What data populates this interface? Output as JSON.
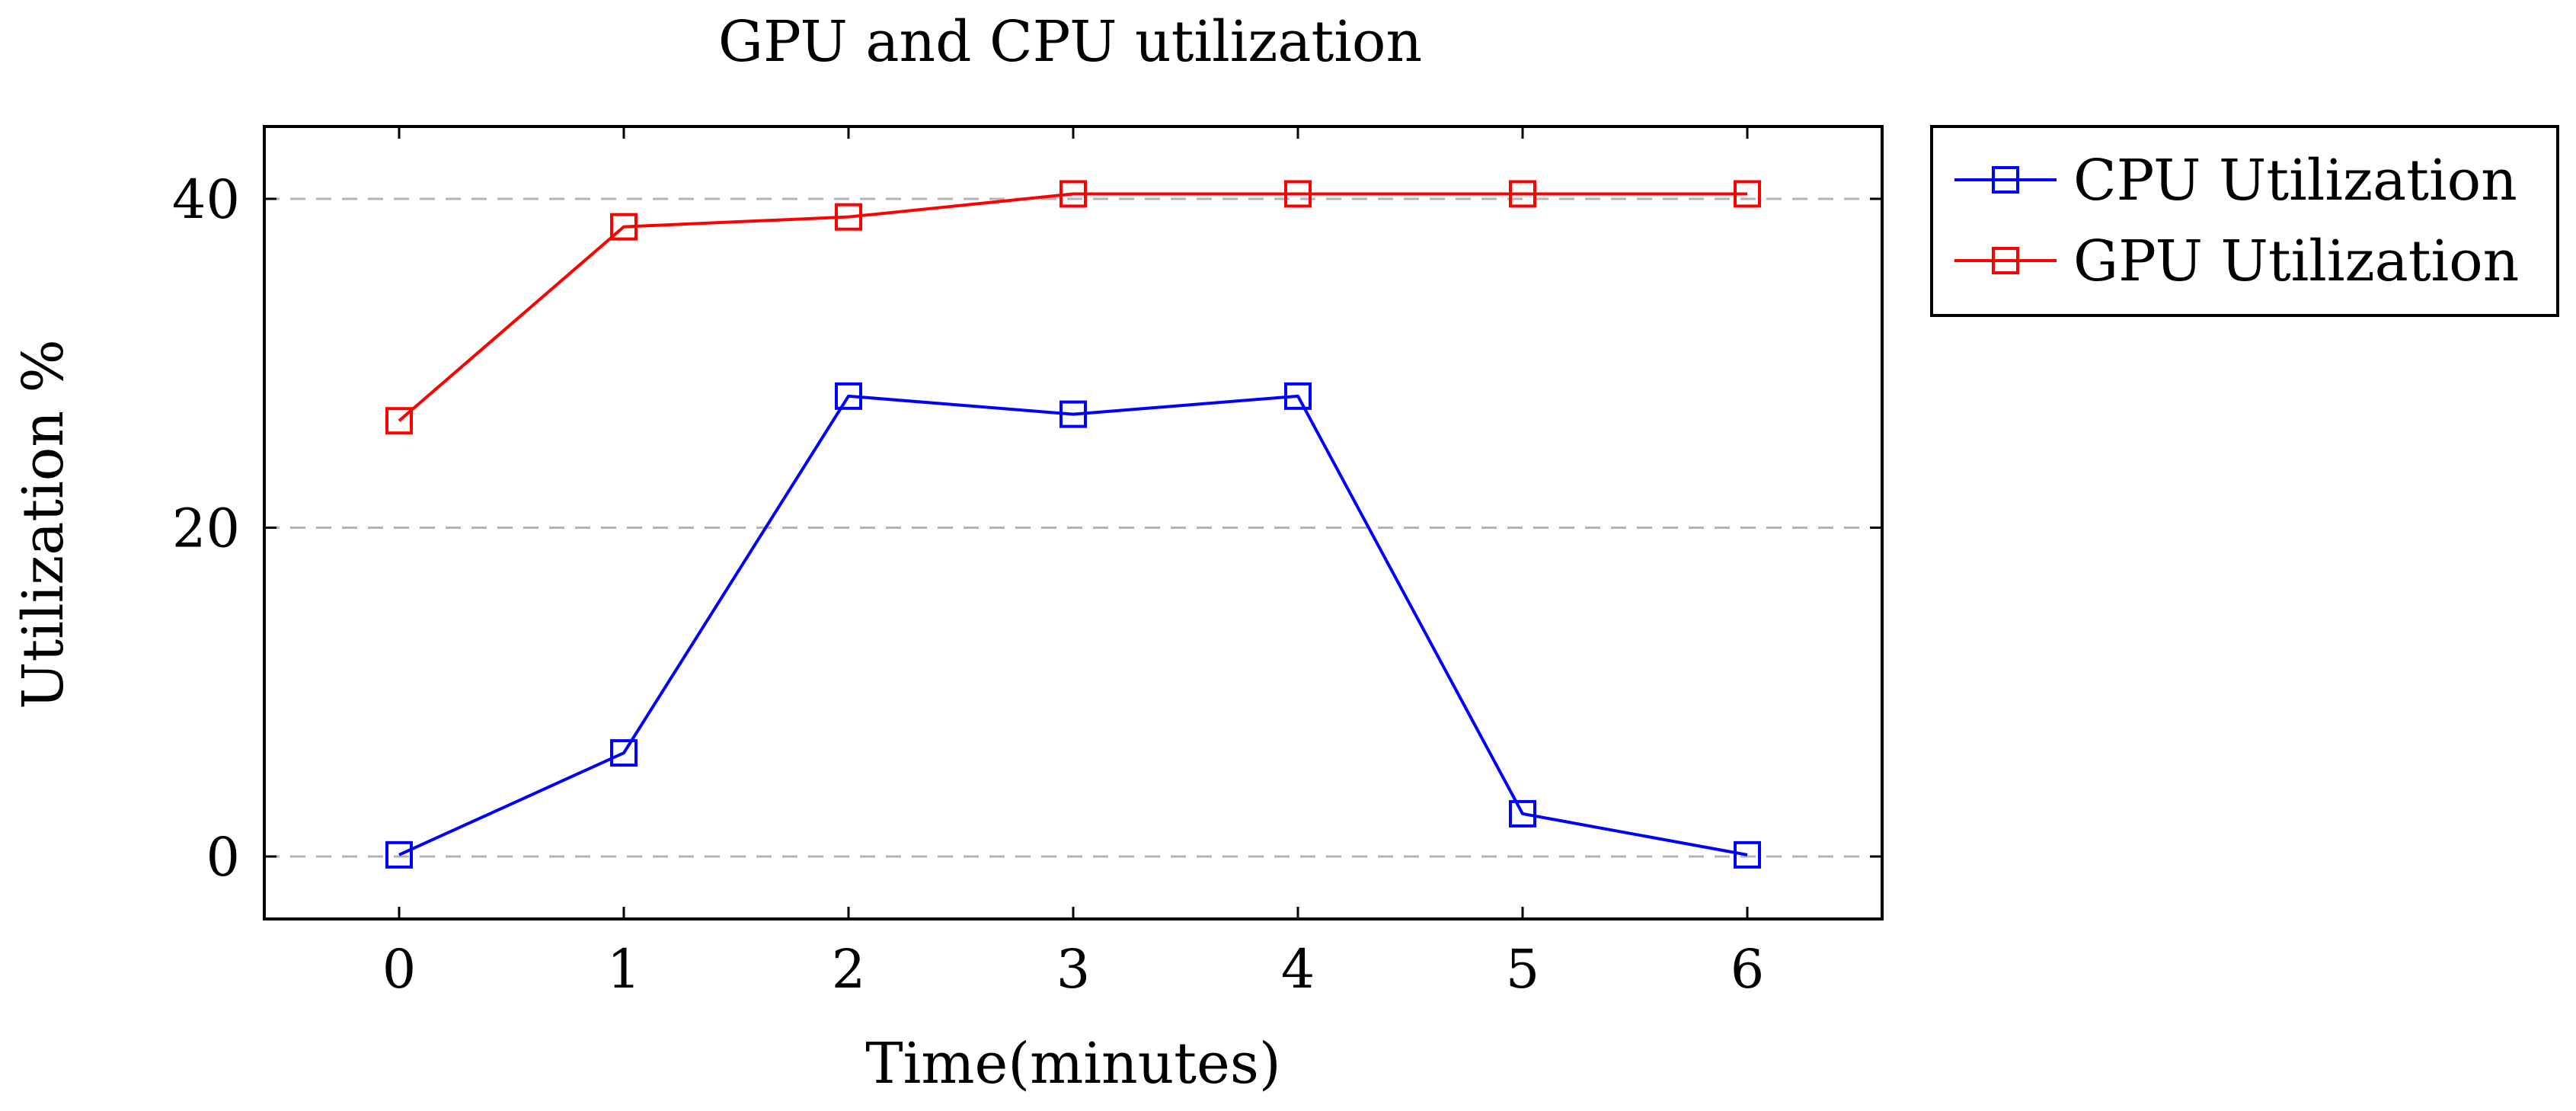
{
  "chart_data": {
    "type": "line",
    "title": "GPU and CPU utilization",
    "xlabel": "Time(minutes)",
    "ylabel": "Utilization %",
    "x": [
      0,
      1,
      2,
      3,
      4,
      5,
      6
    ],
    "xlim": [
      -0.6,
      6.6
    ],
    "ylim": [
      -3.8,
      44.4
    ],
    "xticks": [
      0,
      1,
      2,
      3,
      4,
      5,
      6
    ],
    "yticks": [
      0,
      20,
      40
    ],
    "grid": "horizontal-dashed",
    "legend_position": "outside-top-right",
    "marker": "square",
    "series": [
      {
        "name": "CPU Utilization",
        "color": "#0000ff",
        "values": [
          0.1,
          6.3,
          28.0,
          26.9,
          28.0,
          2.6,
          0.1
        ]
      },
      {
        "name": "GPU Utilization",
        "color": "#ff0000",
        "values": [
          26.5,
          38.3,
          38.9,
          40.3,
          40.3,
          40.3,
          40.3
        ]
      }
    ]
  }
}
